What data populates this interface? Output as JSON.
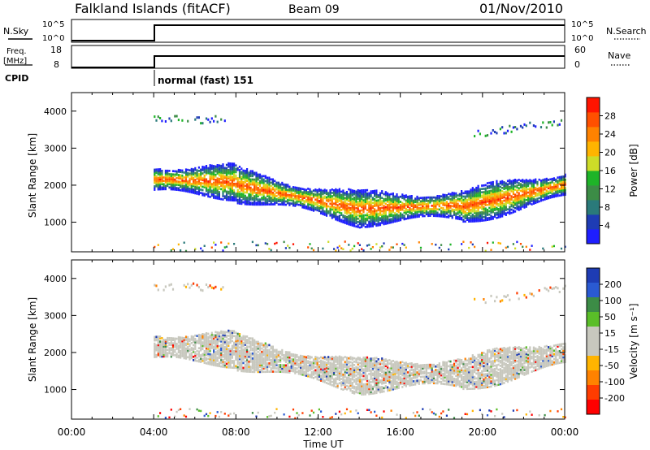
{
  "header": {
    "station": "Falkland Islands (fitACF)",
    "beam": "Beam 09",
    "date": "01/Nov/2010"
  },
  "panels": {
    "nsky_label": "N.Sky",
    "nsearch_label": "N.Search",
    "nsky_ticks": [
      "10^5",
      "10^0"
    ],
    "nsearch_ticks": [
      "10^5",
      "10^0"
    ],
    "freq_label_line1": "Freq.",
    "freq_label_line2": "[MHz]",
    "freq_ticks": [
      "18",
      "8"
    ],
    "nave_label": "Nave",
    "nave_ticks": [
      "60",
      "0"
    ],
    "cpid_label": "CPID",
    "cpid_value": "normal (fast) 151"
  },
  "colors": {
    "power_scale": [
      "#1e1eff",
      "#1e3cb4",
      "#2a7a7a",
      "#3c8c46",
      "#1eb428",
      "#cddc28",
      "#ffb400",
      "#ff8200",
      "#ff5000",
      "#ff1400"
    ],
    "velocity_scale": [
      "#1e3cb4",
      "#2a5ad2",
      "#3c8c46",
      "#5abe28",
      "#c8c8be",
      "#c8c8be",
      "#ffb400",
      "#ff8200",
      "#ff3c00",
      "#ff0000"
    ],
    "ground_scatter": "#c8c8be"
  },
  "chart_data": [
    {
      "type": "heatmap",
      "name": "power-panel",
      "ylabel": "Slant Range [km]",
      "yticks": [
        1000,
        2000,
        3000,
        4000
      ],
      "ylim": [
        200,
        4500
      ],
      "xlim": [
        0,
        24
      ],
      "colorbar_label": "Power [dB]",
      "colorbar_ticks": [
        "4",
        "8",
        "12",
        "16",
        "20",
        "24",
        "28"
      ],
      "colorbar_range": [
        0,
        32
      ],
      "data_start_hour": 4
    },
    {
      "type": "heatmap",
      "name": "velocity-panel",
      "ylabel": "Slant Range [km]",
      "yticks": [
        1000,
        2000,
        3000,
        4000
      ],
      "ylim": [
        200,
        4500
      ],
      "xlim": [
        0,
        24
      ],
      "colorbar_label": "Velocity [m s⁻¹]",
      "colorbar_ticks": [
        "200",
        "100",
        "50",
        "15",
        "-15",
        "-50",
        "-100",
        "-200"
      ],
      "data_start_hour": 4
    }
  ],
  "xaxis": {
    "label": "Time UT",
    "ticks": [
      "00:00",
      "04:00",
      "08:00",
      "12:00",
      "16:00",
      "20:00",
      "00:00"
    ],
    "tick_hours": [
      0,
      4,
      8,
      12,
      16,
      20,
      24
    ]
  }
}
